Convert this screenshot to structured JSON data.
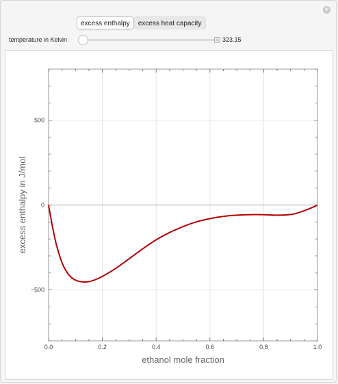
{
  "controls": {
    "tabs": [
      {
        "label": "excess enthalpy",
        "active": true
      },
      {
        "label": "excess heat capacity",
        "active": false
      }
    ],
    "slider": {
      "label": "temperature in Kelvin",
      "value": "323.15"
    }
  },
  "colors": {
    "curve": "#b00000",
    "grid": "#e6e6e6",
    "axis": "#555555"
  },
  "chart_data": {
    "type": "line",
    "xlabel": "ethanol mole fraction",
    "ylabel": "excess enthalpy in J/mol",
    "xlim": [
      0,
      1
    ],
    "ylim": [
      -800,
      800
    ],
    "xticks": [
      0.0,
      0.2,
      0.4,
      0.6,
      0.8,
      1.0
    ],
    "xtick_labels": [
      "0.0",
      "0.2",
      "0.4",
      "0.6",
      "0.8",
      "1.0"
    ],
    "yticks": [
      -500,
      0,
      500
    ],
    "ytick_labels": [
      "-500",
      "0",
      "500"
    ],
    "grid": true,
    "series": [
      {
        "x": [
          0.0,
          0.01,
          0.02,
          0.03,
          0.05,
          0.07,
          0.09,
          0.11,
          0.13,
          0.14,
          0.15,
          0.17,
          0.2,
          0.25,
          0.3,
          0.35,
          0.4,
          0.45,
          0.5,
          0.55,
          0.6,
          0.65,
          0.7,
          0.75,
          0.8,
          0.85,
          0.9,
          0.93,
          0.96,
          0.98,
          1.0
        ],
        "y": [
          0,
          -90,
          -170,
          -240,
          -340,
          -400,
          -433,
          -448,
          -453,
          -453,
          -451,
          -442,
          -420,
          -373,
          -316,
          -258,
          -205,
          -162,
          -127,
          -99,
          -80,
          -67,
          -60,
          -57,
          -57,
          -60,
          -56,
          -45,
          -28,
          -15,
          0
        ]
      }
    ]
  }
}
